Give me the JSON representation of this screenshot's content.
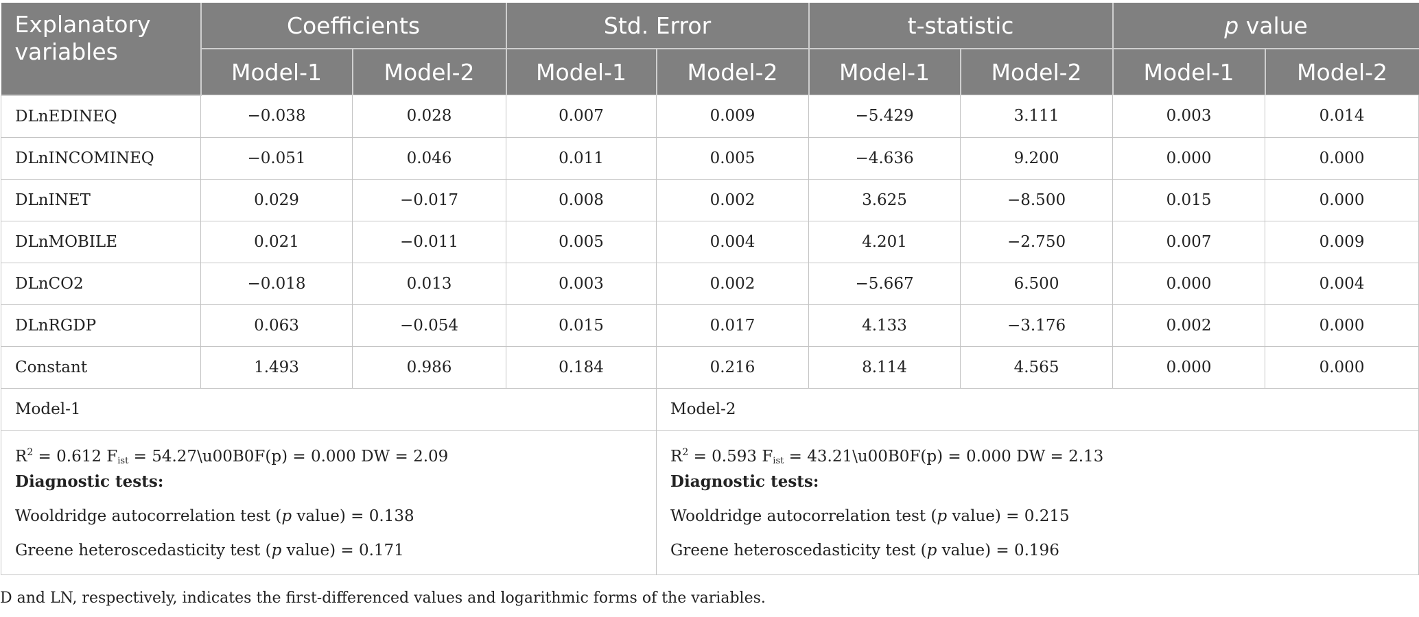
{
  "header": {
    "explanatory": "Explanatory variables",
    "groups": [
      "Coefficients",
      "Std. Error",
      "t-statistic"
    ],
    "pvalue_p": "p",
    "pvalue_rest": " value",
    "models": [
      "Model-1",
      "Model-2"
    ]
  },
  "rows": [
    {
      "variable": "DLnEDINEQ",
      "coef_m1": "−0.038",
      "coef_m2": "0.028",
      "se_m1": "0.007",
      "se_m2": "0.009",
      "t_m1": "−5.429",
      "t_m2": "3.111",
      "p_m1": "0.003",
      "p_m2": "0.014"
    },
    {
      "variable": "DLnINCOMINEQ",
      "coef_m1": "−0.051",
      "coef_m2": "0.046",
      "se_m1": "0.011",
      "se_m2": "0.005",
      "t_m1": "−4.636",
      "t_m2": "9.200",
      "p_m1": "0.000",
      "p_m2": "0.000"
    },
    {
      "variable": "DLnINET",
      "coef_m1": "0.029",
      "coef_m2": "−0.017",
      "se_m1": "0.008",
      "se_m2": "0.002",
      "t_m1": "3.625",
      "t_m2": "−8.500",
      "p_m1": "0.015",
      "p_m2": "0.000"
    },
    {
      "variable": "DLnMOBILE",
      "coef_m1": "0.021",
      "coef_m2": "−0.011",
      "se_m1": "0.005",
      "se_m2": "0.004",
      "t_m1": "4.201",
      "t_m2": "−2.750",
      "p_m1": "0.007",
      "p_m2": "0.009"
    },
    {
      "variable": "DLnCO2",
      "coef_m1": "−0.018",
      "coef_m2": "0.013",
      "se_m1": "0.003",
      "se_m2": "0.002",
      "t_m1": "−5.667",
      "t_m2": "6.500",
      "p_m1": "0.000",
      "p_m2": "0.004"
    },
    {
      "variable": "DLnRGDP",
      "coef_m1": "0.063",
      "coef_m2": "−0.054",
      "se_m1": "0.015",
      "se_m2": "0.017",
      "t_m1": "4.133",
      "t_m2": "−3.176",
      "p_m1": "0.002",
      "p_m2": "0.000"
    },
    {
      "variable": "Constant",
      "coef_m1": "1.493",
      "coef_m2": "0.986",
      "se_m1": "0.184",
      "se_m2": "0.216",
      "t_m1": "8.114",
      "t_m2": "4.565",
      "p_m1": "0.000",
      "p_m2": "0.000"
    }
  ],
  "footer": {
    "model1": {
      "title": "Model-1",
      "stats_r": "R",
      "stats_r_sup": "2",
      "stats_mid": " = 0.612 F",
      "stats_f_sub": "ist",
      "stats_tail": " = 54.27\\u00B0F(p) = 0.000 DW = 2.09",
      "diag_title": "Diagnostic tests:",
      "wool_pre": "Wooldridge autocorrelation test (",
      "wool_p": "p",
      "wool_post": " value) = 0.138",
      "greene_pre": "Greene heteroscedasticity test (",
      "greene_p": "p",
      "greene_post": " value) = 0.171"
    },
    "model2": {
      "title": "Model-2",
      "stats_r": "R",
      "stats_r_sup": "2",
      "stats_mid": " = 0.593 F",
      "stats_f_sub": "ist",
      "stats_tail": " = 43.21\\u00B0F(p) = 0.000 DW = 2.13",
      "diag_title": "Diagnostic tests:",
      "wool_pre": "Wooldridge autocorrelation test (",
      "wool_p": "p",
      "wool_post": " value) = 0.215",
      "greene_pre": "Greene heteroscedasticity test (",
      "greene_p": "p",
      "greene_post": " value) = 0.196"
    }
  },
  "note": "D and LN, respectively, indicates the first-differenced values and logarithmic forms of the variables."
}
